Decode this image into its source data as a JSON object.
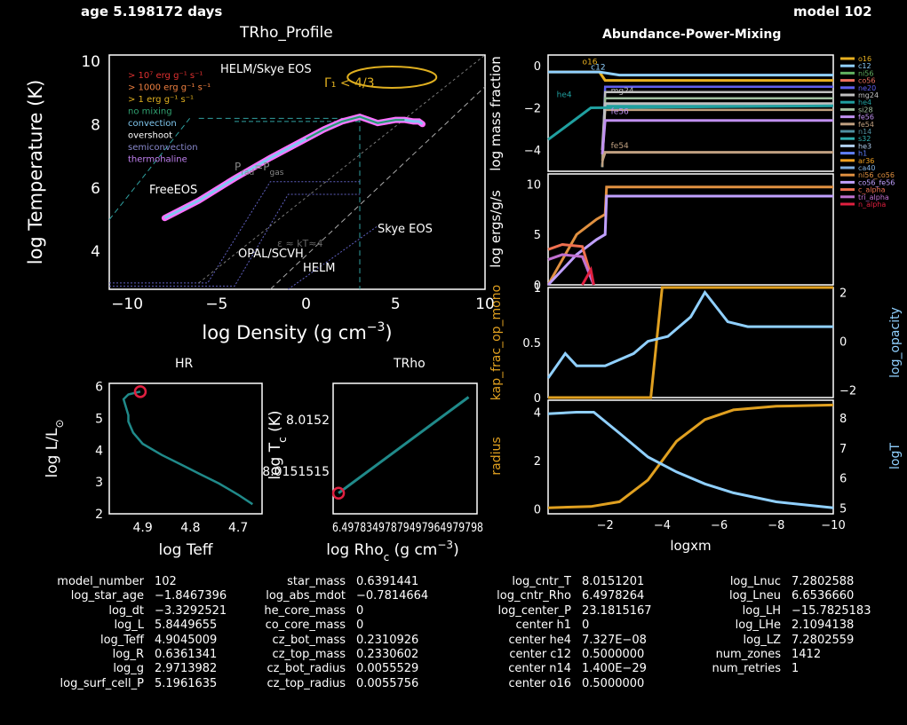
{
  "header": {
    "age": "age 5.198172 days",
    "model": "model 102"
  },
  "trho_profile": {
    "title": "TRho_Profile",
    "xlabel": "log Density (g cm",
    "xlabel_sup": "−3",
    "xlabel_tail": ")",
    "ylabel": "log Temperature (K)",
    "xticks": [
      "−10",
      "−5",
      "0",
      "5",
      "10"
    ],
    "yticks": [
      "4",
      "6",
      "8",
      "10"
    ],
    "legend": [
      {
        "text": "> 10⁷ erg g⁻¹ s⁻¹",
        "color": "#e03030"
      },
      {
        "text": "> 1000 erg g⁻¹ s⁻¹",
        "color": "#f08040"
      },
      {
        "text": "> 1 erg g⁻¹ s⁻¹",
        "color": "#e0b020"
      },
      {
        "text": "no mixing",
        "color": "#30a070"
      },
      {
        "text": "convection",
        "color": "#80c8f0"
      },
      {
        "text": "overshoot",
        "color": "#ffffff"
      },
      {
        "text": "semiconvection",
        "color": "#8888cc"
      },
      {
        "text": "thermohaline",
        "color": "#c080f0"
      }
    ],
    "annotations": {
      "helm_skye": "HELM/Skye EOS",
      "gamma": "Γ₁ < 4/3",
      "prad": "P",
      "prad_sub": "rad",
      "prad_mid": "=P",
      "prad_sub2": "gas",
      "freeeos": "FreeEOS",
      "skye": "Skye EOS",
      "opal": "OPAL/SCVH",
      "helm": "HELM",
      "eps": "ε ≈ kT≈4"
    }
  },
  "hr": {
    "title": "HR",
    "xlabel": "log Teff",
    "ylabel": "log L/L",
    "ylabel_sub": "⊙",
    "xticks": [
      "4.9",
      "4.8",
      "4.7"
    ],
    "yticks": [
      "2",
      "3",
      "4",
      "5",
      "6"
    ]
  },
  "trho": {
    "title": "TRho",
    "xlabel": "log Rho",
    "xlabel_sub": "c",
    "xlabel_tail": " (g cm",
    "xlabel_sup": "−3",
    "xlabel_end": ")",
    "ylabel": "log T",
    "ylabel_sub": "c",
    "ylabel_tail": " (K)",
    "xticks": "6.49783497879497964979798",
    "yticks": [
      "8.0151515",
      "8.0152"
    ]
  },
  "abundance": {
    "title": "Abundance-Power-Mixing",
    "xlabel": "logxm",
    "xticks": [
      "−2",
      "−4",
      "−6",
      "−8",
      "−10"
    ],
    "panel1_ylabel": "log mass fraction",
    "panel1_yticks": [
      "0",
      "−2",
      "−4"
    ],
    "panel2_ylabel": "log ergs/g/s",
    "panel2_yticks": [
      "0",
      "5",
      "10"
    ],
    "panel3_ylabel_left": "kap_frac_op_mono",
    "panel3_yticks_left": [
      "0",
      "0.5",
      "1"
    ],
    "panel3_ylabel_right": "log_opacity",
    "panel3_yticks_right": [
      "−2",
      "0",
      "2"
    ],
    "panel4_ylabel_left": "radius",
    "panel4_yticks_left": [
      "0",
      "2",
      "4"
    ],
    "panel4_ylabel_right": "logT",
    "panel4_yticks_right": [
      "5",
      "6",
      "7",
      "8"
    ],
    "line_labels": [
      "o16",
      "c12",
      "mg24",
      "fe56",
      "fe54",
      "he4"
    ],
    "legend": [
      {
        "text": "o16",
        "color": "#e8b020"
      },
      {
        "text": "c12",
        "color": "#90d0ff"
      },
      {
        "text": "ni56",
        "color": "#60b060"
      },
      {
        "text": "co56",
        "color": "#f07060"
      },
      {
        "text": "ne20",
        "color": "#6060f0"
      },
      {
        "text": "mg24",
        "color": "#c0c0c0"
      },
      {
        "text": "he4",
        "color": "#20a0a0"
      },
      {
        "text": "si28",
        "color": "#a0c0a0"
      },
      {
        "text": "fe56",
        "color": "#c090f0"
      },
      {
        "text": "fe54",
        "color": "#c0a080"
      },
      {
        "text": "n14",
        "color": "#5090a0"
      },
      {
        "text": "s32",
        "color": "#30b0b0"
      },
      {
        "text": "he3",
        "color": "#b0d0f0"
      },
      {
        "text": "h1",
        "color": "#6080ff"
      },
      {
        "text": "ar36",
        "color": "#f0a020"
      },
      {
        "text": "ca40",
        "color": "#80b0e0"
      },
      {
        "text": "ni56_co56",
        "color": "#e09040"
      },
      {
        "text": "co56_fe56",
        "color": "#c0a0ff"
      },
      {
        "text": "c_alpha",
        "color": "#f07050"
      },
      {
        "text": "tri_alpha",
        "color": "#c070d0"
      },
      {
        "text": "n_alpha",
        "color": "#e02040"
      }
    ]
  },
  "stats": {
    "col1": [
      [
        "model_number",
        "102"
      ],
      [
        "log_star_age",
        "−1.8467396"
      ],
      [
        "log_dt",
        "−3.3292521"
      ],
      [
        "log_L",
        "5.8449655"
      ],
      [
        "log_Teff",
        "4.9045009"
      ],
      [
        "log_R",
        "0.6361341"
      ],
      [
        "log_g",
        "2.9713982"
      ],
      [
        "log_surf_cell_P",
        "5.1961635"
      ]
    ],
    "col2": [
      [
        "star_mass",
        "0.6391441"
      ],
      [
        "log_abs_mdot",
        "−0.7814664"
      ],
      [
        "he_core_mass",
        "0"
      ],
      [
        "co_core_mass",
        "0"
      ],
      [
        "cz_bot_mass",
        "0.2310926"
      ],
      [
        "cz_top_mass",
        "0.2330602"
      ],
      [
        "cz_bot_radius",
        "0.0055529"
      ],
      [
        "cz_top_radius",
        "0.0055756"
      ]
    ],
    "col3": [
      [
        "log_cntr_T",
        "8.0151201"
      ],
      [
        "log_cntr_Rho",
        "6.4978264"
      ],
      [
        "log_center_P",
        "23.1815167"
      ],
      [
        "center h1",
        "0"
      ],
      [
        "center he4",
        "7.327E−08"
      ],
      [
        "center c12",
        "0.5000000"
      ],
      [
        "center n14",
        "1.400E−29"
      ],
      [
        "center o16",
        "0.5000000"
      ]
    ],
    "col4": [
      [
        "log_Lnuc",
        "7.2802588"
      ],
      [
        "log_Lneu",
        "6.6536660"
      ],
      [
        "log_LH",
        "−15.7825183"
      ],
      [
        "log_LHe",
        "2.1094138"
      ],
      [
        "log_LZ",
        "7.2802559"
      ],
      [
        "num_zones",
        "1412"
      ],
      [
        "num_retries",
        "1"
      ]
    ]
  },
  "chart_data": [
    {
      "type": "line",
      "title": "TRho_Profile",
      "xlabel": "log Density (g cm−3)",
      "ylabel": "log Temperature (K)",
      "xlim": [
        -11,
        10
      ],
      "ylim": [
        2.8,
        10.2
      ],
      "series": [
        {
          "x": [
            -7.9,
            -6,
            -4,
            -2,
            0,
            1,
            2,
            3,
            4,
            4.5,
            5,
            5.5,
            6,
            6.3,
            6.5
          ],
          "y": [
            5.05,
            5.6,
            6.3,
            6.95,
            7.55,
            7.85,
            8.1,
            8.25,
            8.05,
            8.1,
            8.15,
            8.15,
            8.1,
            8.1,
            8.02
          ]
        }
      ]
    },
    {
      "type": "line",
      "title": "HR",
      "xlabel": "log Teff",
      "ylabel": "log L/L⊙",
      "xlim": [
        4.97,
        4.65
      ],
      "ylim": [
        2,
        6.1
      ],
      "series": [
        {
          "x": [
            4.905,
            4.93,
            4.94,
            4.935,
            4.93,
            4.93,
            4.92,
            4.9,
            4.86,
            4.82,
            4.78,
            4.74,
            4.7,
            4.67
          ],
          "y": [
            5.84,
            5.75,
            5.6,
            5.35,
            5.1,
            4.9,
            4.55,
            4.2,
            3.85,
            3.55,
            3.25,
            2.95,
            2.6,
            2.3
          ]
        }
      ]
    },
    {
      "type": "line",
      "title": "TRho",
      "xlabel": "log Rho_c (g cm−3)",
      "ylabel": "log T_c (K)",
      "xlim": [
        6.49782,
        6.49799
      ],
      "ylim": [
        8.01509,
        8.01528
      ],
      "series": [
        {
          "x": [
            6.4978264,
            6.49798
          ],
          "y": [
            8.0151201,
            8.01526
          ]
        }
      ]
    },
    {
      "type": "line",
      "title": "Abundance-Power-Mixing (mass fraction)",
      "xlabel": "logxm",
      "ylabel": "log mass fraction",
      "xlim": [
        0,
        -10
      ],
      "ylim": [
        -5,
        0.5
      ],
      "series": [
        {
          "name": "o16",
          "x": [
            0,
            -1.8,
            -2,
            -10
          ],
          "y": [
            -0.3,
            -0.3,
            -0.7,
            -0.7
          ]
        },
        {
          "name": "c12",
          "x": [
            0,
            -1.8,
            -2.5,
            -10
          ],
          "y": [
            -0.3,
            -0.3,
            -0.45,
            -0.45
          ]
        },
        {
          "name": "mg24",
          "x": [
            -1.9,
            -2,
            -10
          ],
          "y": [
            -4,
            -1.8,
            -1.8
          ]
        },
        {
          "name": "fe56",
          "x": [
            -1.9,
            -2,
            -10
          ],
          "y": [
            -4.2,
            -2.6,
            -2.6
          ]
        },
        {
          "name": "fe54",
          "x": [
            -1.9,
            -2,
            -10
          ],
          "y": [
            -4.5,
            -4.1,
            -4.1
          ]
        },
        {
          "name": "he4",
          "x": [
            0,
            -1,
            -1.5,
            -10
          ],
          "y": [
            -3.5,
            -2.5,
            -2.0,
            -1.9
          ]
        }
      ]
    },
    {
      "type": "line",
      "title": "Abundance-Power-Mixing (power)",
      "xlabel": "logxm",
      "ylabel": "log ergs/g/s",
      "xlim": [
        0,
        -10
      ],
      "ylim": [
        0,
        11
      ],
      "series": [
        {
          "name": "ni56_co56",
          "x": [
            0,
            -1,
            -1.7,
            -2.0,
            -2.05,
            -10
          ],
          "y": [
            0,
            5,
            6.5,
            7,
            9.7,
            9.7
          ]
        },
        {
          "name": "co56_fe56",
          "x": [
            0,
            -1,
            -1.7,
            -2.0,
            -2.05,
            -10
          ],
          "y": [
            0,
            3,
            4.5,
            5,
            8.8,
            8.8
          ]
        },
        {
          "name": "c_alpha",
          "x": [
            0,
            -0.5,
            -1.2,
            -1.6
          ],
          "y": [
            3.5,
            4.0,
            3.8,
            0
          ]
        },
        {
          "name": "tri_alpha",
          "x": [
            0,
            -0.5,
            -1.2,
            -1.6
          ],
          "y": [
            2.5,
            3.0,
            2.8,
            0
          ]
        },
        {
          "name": "n_alpha",
          "x": [
            -1.2,
            -1.5,
            -1.6
          ],
          "y": [
            0,
            1.5,
            0
          ]
        }
      ]
    },
    {
      "type": "line",
      "title": "Abundance-Power-Mixing (opacity)",
      "xlabel": "logxm",
      "ylabel": "kap_frac_op_mono",
      "ylabel_right": "log_opacity",
      "xlim": [
        0,
        -10
      ],
      "ylim": [
        0,
        1
      ],
      "ylim_right": [
        -2.3,
        2.2
      ],
      "series": [
        {
          "name": "kap_frac_op_mono",
          "x": [
            0,
            -3.6,
            -4.0,
            -10
          ],
          "y": [
            0,
            0,
            1,
            1
          ]
        },
        {
          "name": "log_opacity",
          "x": [
            0,
            -0.6,
            -1,
            -2,
            -3,
            -3.5,
            -4.2,
            -5,
            -5.5,
            -6.3,
            -7,
            -10
          ],
          "y": [
            -1.5,
            -0.5,
            -1,
            -1,
            -0.5,
            0,
            0.2,
            1,
            2,
            0.8,
            0.6,
            0.6
          ]
        }
      ]
    },
    {
      "type": "line",
      "title": "Abundance-Power-Mixing (structure)",
      "xlabel": "logxm",
      "ylabel": "radius",
      "ylabel_right": "logT",
      "xlim": [
        0,
        -10
      ],
      "ylim": [
        -0.2,
        4.5
      ],
      "ylim_right": [
        4.8,
        8.6
      ],
      "series": [
        {
          "name": "radius",
          "x": [
            0,
            -1.5,
            -2.5,
            -3.5,
            -4.5,
            -5.5,
            -6.5,
            -8,
            -10
          ],
          "y": [
            0.05,
            0.1,
            0.3,
            1.2,
            2.8,
            3.7,
            4.1,
            4.25,
            4.3
          ]
        },
        {
          "name": "logT",
          "x": [
            0,
            -1,
            -1.6,
            -2.5,
            -3.5,
            -4.5,
            -5.5,
            -6.5,
            -8,
            -10
          ],
          "y": [
            8.15,
            8.2,
            8.2,
            7.5,
            6.7,
            6.2,
            5.8,
            5.5,
            5.2,
            5.0
          ]
        }
      ]
    }
  ]
}
